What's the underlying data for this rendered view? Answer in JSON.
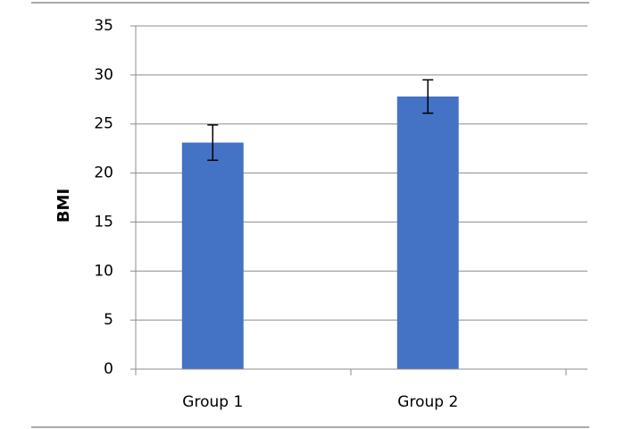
{
  "chart_data": {
    "type": "bar",
    "y_label": "BMI",
    "categories": [
      "Group 1",
      "Group 2"
    ],
    "values": [
      23.1,
      27.8
    ],
    "errors": [
      1.8,
      1.7
    ],
    "color": "#4472c4",
    "ylim": [
      0,
      35
    ],
    "yticks": [
      0,
      5,
      10,
      15,
      20,
      25,
      30,
      35
    ],
    "grid": true
  }
}
